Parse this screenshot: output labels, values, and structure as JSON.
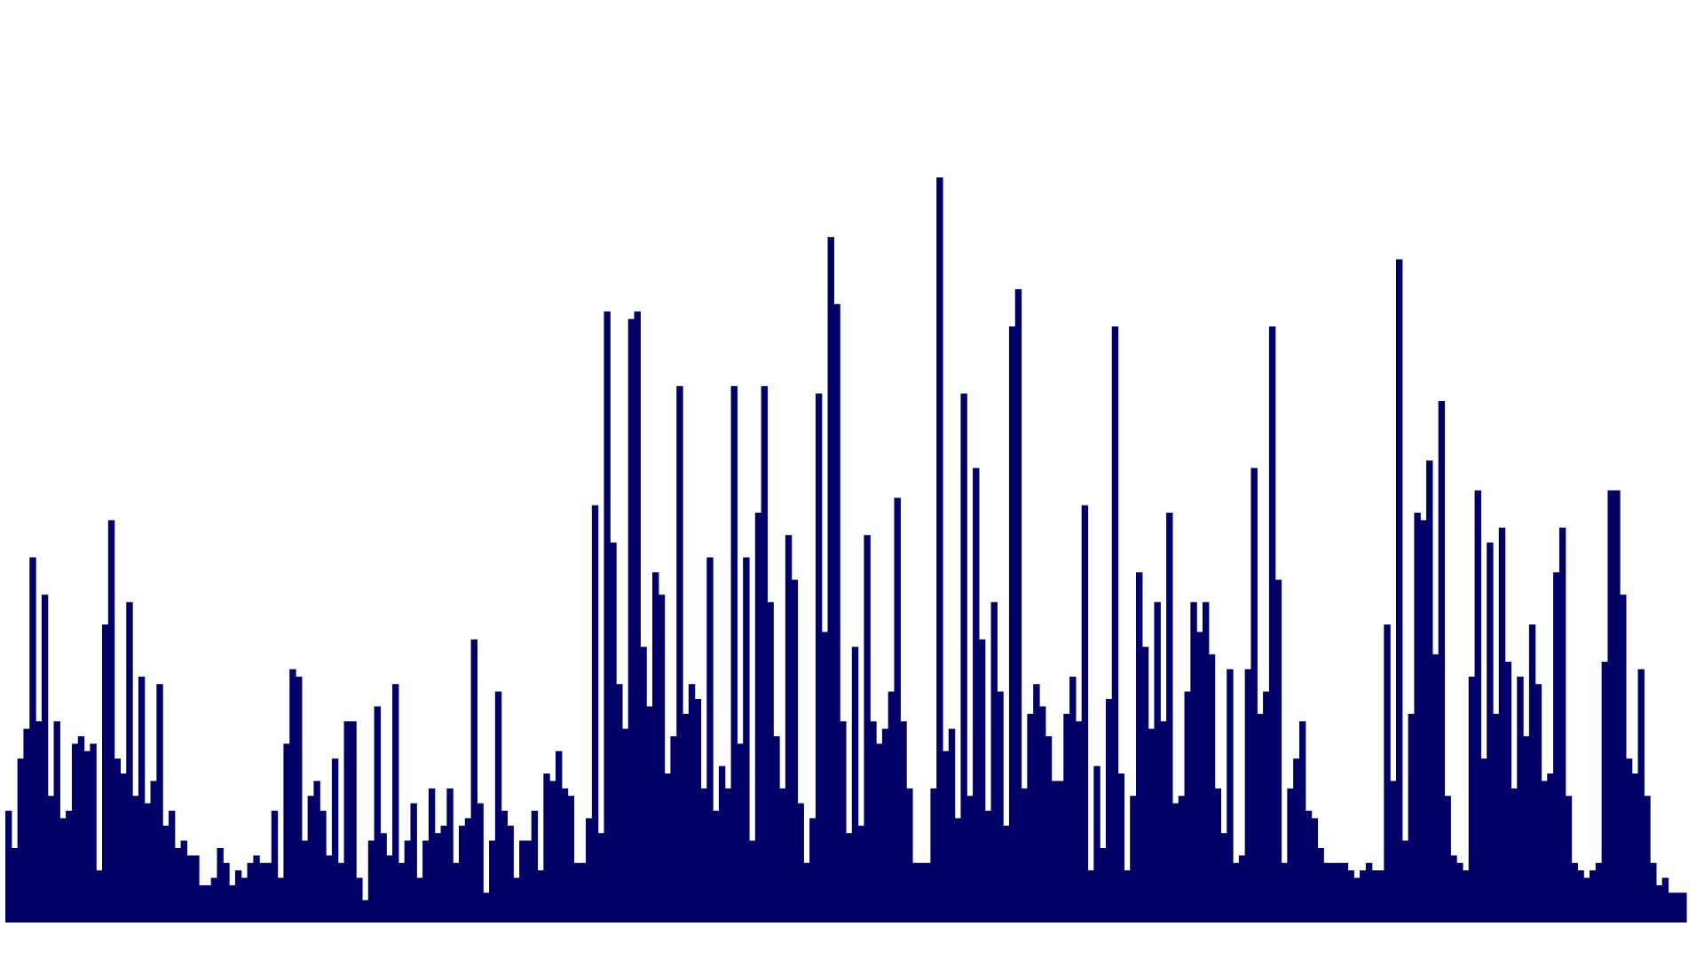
{
  "chart_data": {
    "type": "bar",
    "title": "",
    "xlabel": "",
    "ylabel": "",
    "grid": false,
    "legend": "none",
    "color": "#000066",
    "ylim": [
      0,
      100
    ],
    "values": [
      15,
      10,
      22,
      26,
      49,
      27,
      44,
      17,
      27,
      14,
      15,
      24,
      25,
      23,
      24,
      7,
      40,
      54,
      22,
      20,
      43,
      17,
      33,
      16,
      19,
      32,
      13,
      15,
      10,
      11,
      9,
      9,
      5,
      5,
      6,
      10,
      8,
      5,
      7,
      6,
      8,
      9,
      8,
      8,
      15,
      6,
      24,
      34,
      33,
      11,
      17,
      19,
      15,
      9,
      22,
      8,
      27,
      27,
      6,
      3,
      11,
      29,
      12,
      9,
      32,
      8,
      11,
      16,
      6,
      11,
      18,
      12,
      13,
      18,
      8,
      13,
      14,
      38,
      16,
      4,
      11,
      31,
      15,
      13,
      6,
      11,
      11,
      15,
      7,
      20,
      19,
      23,
      18,
      17,
      8,
      8,
      14,
      56,
      12,
      82,
      51,
      32,
      26,
      81,
      82,
      37,
      29,
      47,
      44,
      20,
      25,
      72,
      28,
      32,
      30,
      18,
      49,
      15,
      21,
      18,
      72,
      24,
      49,
      11,
      55,
      72,
      43,
      25,
      18,
      52,
      46,
      16,
      8,
      14,
      71,
      39,
      92,
      83,
      27,
      12,
      37,
      13,
      52,
      27,
      24,
      26,
      31,
      57,
      27,
      18,
      8,
      8,
      8,
      18,
      100,
      23,
      26,
      14,
      71,
      17,
      61,
      38,
      15,
      43,
      31,
      13,
      80,
      85,
      18,
      28,
      32,
      29,
      25,
      19,
      19,
      28,
      33,
      27,
      56,
      7,
      21,
      10,
      30,
      80,
      20,
      7,
      17,
      47,
      37,
      26,
      43,
      27,
      55,
      16,
      17,
      31,
      43,
      39,
      43,
      36,
      18,
      12,
      34,
      8,
      9,
      34,
      61,
      28,
      31,
      80,
      46,
      8,
      18,
      22,
      27,
      15,
      14,
      10,
      8,
      8,
      8,
      8,
      7,
      6,
      7,
      8,
      7,
      7,
      40,
      19,
      89,
      11,
      28,
      55,
      54,
      62,
      36,
      70,
      17,
      9,
      8,
      7,
      33,
      58,
      22,
      51,
      28,
      53,
      35,
      18,
      33,
      25,
      40,
      32,
      19,
      20,
      47,
      53,
      17,
      8,
      7,
      6,
      7,
      8,
      35,
      58,
      58,
      44,
      22,
      20,
      34,
      17,
      8,
      5,
      6,
      4,
      4,
      4
    ]
  }
}
